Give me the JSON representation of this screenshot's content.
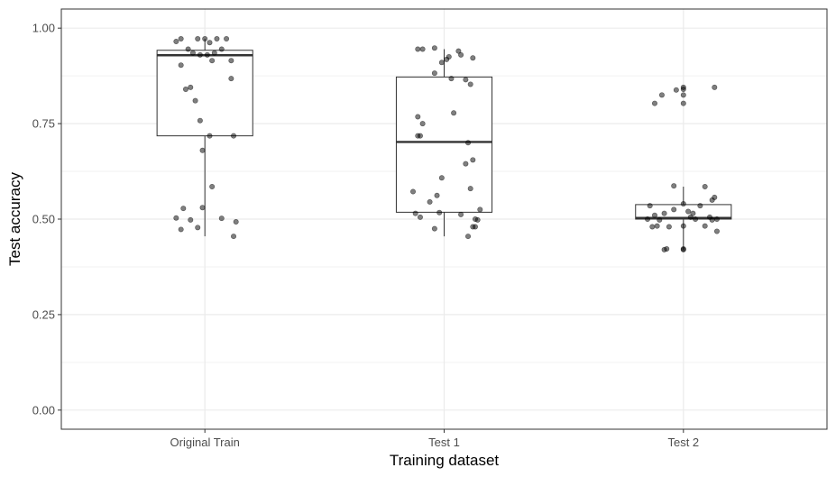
{
  "chart_data": {
    "type": "box",
    "xlabel": "Training dataset",
    "ylabel": "Test accuracy",
    "ylim": [
      -0.05,
      1.05
    ],
    "y_ticks": [
      0.0,
      0.25,
      0.5,
      0.75,
      1.0
    ],
    "y_tick_labels": [
      "0.00",
      "0.25",
      "0.50",
      "0.75",
      "1.00"
    ],
    "categories": [
      "Original Train",
      "Test 1",
      "Test 2"
    ],
    "grid": true,
    "legend": "none",
    "boxes": [
      {
        "category": "Original Train",
        "min": 0.455,
        "q1": 0.718,
        "median": 0.929,
        "q3": 0.942,
        "max": 0.972
      },
      {
        "category": "Test 1",
        "min": 0.455,
        "q1": 0.518,
        "median": 0.702,
        "q3": 0.872,
        "max": 0.945
      },
      {
        "category": "Test 2",
        "min": 0.42,
        "q1": 0.5,
        "median": 0.503,
        "q3": 0.538,
        "max": 0.585
      }
    ],
    "points": [
      {
        "category": "Original Train",
        "values": [
          {
            "dx": -0.24,
            "y": 0.965
          },
          {
            "dx": -0.2,
            "y": 0.972
          },
          {
            "dx": -0.14,
            "y": 0.945
          },
          {
            "dx": -0.1,
            "y": 0.935
          },
          {
            "dx": -0.06,
            "y": 0.972
          },
          {
            "dx": 0.0,
            "y": 0.972
          },
          {
            "dx": 0.04,
            "y": 0.962
          },
          {
            "dx": 0.1,
            "y": 0.972
          },
          {
            "dx": 0.18,
            "y": 0.972
          },
          {
            "dx": 0.08,
            "y": 0.935
          },
          {
            "dx": 0.02,
            "y": 0.93
          },
          {
            "dx": -0.04,
            "y": 0.93
          },
          {
            "dx": 0.14,
            "y": 0.945
          },
          {
            "dx": 0.06,
            "y": 0.915
          },
          {
            "dx": 0.22,
            "y": 0.915
          },
          {
            "dx": -0.2,
            "y": 0.903
          },
          {
            "dx": 0.22,
            "y": 0.868
          },
          {
            "dx": -0.12,
            "y": 0.845
          },
          {
            "dx": -0.16,
            "y": 0.84
          },
          {
            "dx": -0.08,
            "y": 0.81
          },
          {
            "dx": -0.04,
            "y": 0.758
          },
          {
            "dx": 0.04,
            "y": 0.718
          },
          {
            "dx": 0.24,
            "y": 0.718
          },
          {
            "dx": -0.02,
            "y": 0.68
          },
          {
            "dx": 0.06,
            "y": 0.585
          },
          {
            "dx": -0.18,
            "y": 0.528
          },
          {
            "dx": -0.02,
            "y": 0.53
          },
          {
            "dx": -0.24,
            "y": 0.503
          },
          {
            "dx": -0.12,
            "y": 0.498
          },
          {
            "dx": 0.14,
            "y": 0.502
          },
          {
            "dx": 0.26,
            "y": 0.493
          },
          {
            "dx": -0.06,
            "y": 0.478
          },
          {
            "dx": -0.2,
            "y": 0.473
          },
          {
            "dx": 0.24,
            "y": 0.455
          }
        ]
      },
      {
        "category": "Test 1",
        "values": [
          {
            "dx": -0.22,
            "y": 0.945
          },
          {
            "dx": -0.18,
            "y": 0.945
          },
          {
            "dx": -0.08,
            "y": 0.948
          },
          {
            "dx": 0.12,
            "y": 0.94
          },
          {
            "dx": 0.14,
            "y": 0.93
          },
          {
            "dx": 0.04,
            "y": 0.925
          },
          {
            "dx": 0.02,
            "y": 0.918
          },
          {
            "dx": 0.24,
            "y": 0.922
          },
          {
            "dx": -0.02,
            "y": 0.91
          },
          {
            "dx": -0.08,
            "y": 0.882
          },
          {
            "dx": 0.06,
            "y": 0.868
          },
          {
            "dx": 0.18,
            "y": 0.865
          },
          {
            "dx": 0.22,
            "y": 0.853
          },
          {
            "dx": 0.08,
            "y": 0.778
          },
          {
            "dx": -0.22,
            "y": 0.768
          },
          {
            "dx": -0.18,
            "y": 0.75
          },
          {
            "dx": -0.2,
            "y": 0.718
          },
          {
            "dx": -0.22,
            "y": 0.718
          },
          {
            "dx": 0.2,
            "y": 0.7
          },
          {
            "dx": 0.18,
            "y": 0.645
          },
          {
            "dx": 0.24,
            "y": 0.655
          },
          {
            "dx": -0.02,
            "y": 0.608
          },
          {
            "dx": 0.22,
            "y": 0.58
          },
          {
            "dx": -0.26,
            "y": 0.572
          },
          {
            "dx": -0.06,
            "y": 0.562
          },
          {
            "dx": -0.12,
            "y": 0.545
          },
          {
            "dx": 0.14,
            "y": 0.512
          },
          {
            "dx": 0.3,
            "y": 0.525
          },
          {
            "dx": -0.24,
            "y": 0.515
          },
          {
            "dx": -0.2,
            "y": 0.505
          },
          {
            "dx": -0.04,
            "y": 0.517
          },
          {
            "dx": 0.26,
            "y": 0.5
          },
          {
            "dx": 0.28,
            "y": 0.498
          },
          {
            "dx": 0.24,
            "y": 0.48
          },
          {
            "dx": 0.26,
            "y": 0.48
          },
          {
            "dx": -0.08,
            "y": 0.475
          },
          {
            "dx": 0.2,
            "y": 0.455
          }
        ]
      },
      {
        "category": "Test 2",
        "values": [
          {
            "dx": 0.26,
            "y": 0.845
          },
          {
            "dx": 0.0,
            "y": 0.845
          },
          {
            "dx": 0.0,
            "y": 0.84
          },
          {
            "dx": -0.06,
            "y": 0.838
          },
          {
            "dx": -0.18,
            "y": 0.825
          },
          {
            "dx": 0.0,
            "y": 0.825
          },
          {
            "dx": 0.0,
            "y": 0.803
          },
          {
            "dx": -0.24,
            "y": 0.803
          },
          {
            "dx": -0.08,
            "y": 0.587
          },
          {
            "dx": 0.18,
            "y": 0.585
          },
          {
            "dx": 0.26,
            "y": 0.557
          },
          {
            "dx": 0.24,
            "y": 0.55
          },
          {
            "dx": -0.28,
            "y": 0.535
          },
          {
            "dx": 0.0,
            "y": 0.54
          },
          {
            "dx": 0.14,
            "y": 0.535
          },
          {
            "dx": 0.04,
            "y": 0.52
          },
          {
            "dx": -0.16,
            "y": 0.515
          },
          {
            "dx": -0.08,
            "y": 0.525
          },
          {
            "dx": 0.08,
            "y": 0.515
          },
          {
            "dx": -0.24,
            "y": 0.51
          },
          {
            "dx": 0.06,
            "y": 0.505
          },
          {
            "dx": 0.1,
            "y": 0.5
          },
          {
            "dx": 0.22,
            "y": 0.505
          },
          {
            "dx": 0.24,
            "y": 0.498
          },
          {
            "dx": -0.3,
            "y": 0.5
          },
          {
            "dx": -0.2,
            "y": 0.498
          },
          {
            "dx": 0.28,
            "y": 0.5
          },
          {
            "dx": -0.22,
            "y": 0.482
          },
          {
            "dx": -0.12,
            "y": 0.48
          },
          {
            "dx": 0.0,
            "y": 0.482
          },
          {
            "dx": -0.26,
            "y": 0.48
          },
          {
            "dx": 0.18,
            "y": 0.482
          },
          {
            "dx": 0.28,
            "y": 0.468
          },
          {
            "dx": -0.14,
            "y": 0.422
          },
          {
            "dx": -0.16,
            "y": 0.42
          },
          {
            "dx": 0.0,
            "y": 0.422
          },
          {
            "dx": 0.0,
            "y": 0.42
          }
        ]
      }
    ]
  }
}
